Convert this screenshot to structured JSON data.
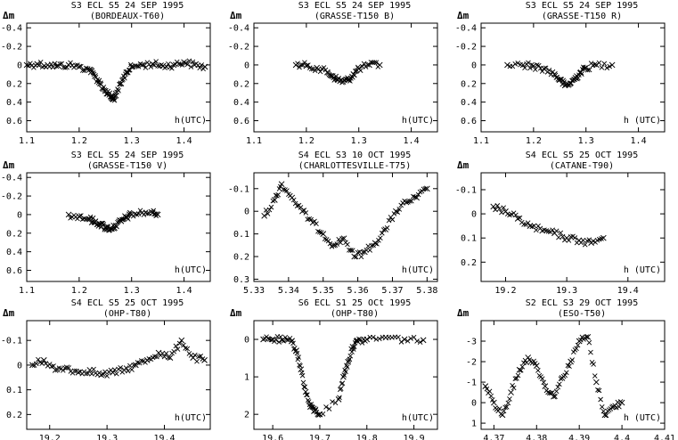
{
  "chart_data": [
    {
      "type": "scatter",
      "title": "S3 ECL S5 24 SEP 1995",
      "subtitle": "(BORDEAUX-T60)",
      "ylabel": "Δm",
      "xlabel": "h(UTC)",
      "xlim": [
        1.1,
        1.45
      ],
      "ylim": [
        -0.45,
        0.72
      ],
      "y_inverted": true,
      "xticks": [
        1.1,
        1.2,
        1.3,
        1.4
      ],
      "xtick_labels": [
        "1.1",
        "1.2",
        "1.3",
        "1.4"
      ],
      "yticks": [
        -0.4,
        -0.2,
        0,
        0.2,
        0.4,
        0.6
      ],
      "ytick_labels": [
        "-0.4",
        "-0.2",
        "0",
        "0.2",
        "0.4",
        "0.6"
      ],
      "marker": "x",
      "series": [
        {
          "x": [
            1.1,
            1.12,
            1.14,
            1.16,
            1.18,
            1.2,
            1.22,
            1.23,
            1.24,
            1.25,
            1.26,
            1.265,
            1.27,
            1.28,
            1.29,
            1.3,
            1.32,
            1.34,
            1.36,
            1.38,
            1.4,
            1.42,
            1.44
          ],
          "y": [
            0.0,
            -0.01,
            0.0,
            0.01,
            0.0,
            0.02,
            0.05,
            0.12,
            0.2,
            0.28,
            0.34,
            0.37,
            0.33,
            0.2,
            0.08,
            0.02,
            0.0,
            -0.01,
            0.01,
            0.0,
            -0.03,
            0.0,
            0.02
          ]
        }
      ]
    },
    {
      "type": "scatter",
      "title": "S3 ECL S5 24 SEP 1995",
      "subtitle": "(GRASSE-T150 B)",
      "ylabel": "Δm",
      "xlabel": "h(UTC)",
      "xlim": [
        1.1,
        1.45
      ],
      "ylim": [
        -0.45,
        0.72
      ],
      "y_inverted": true,
      "xticks": [
        1.1,
        1.2,
        1.3,
        1.4
      ],
      "xtick_labels": [
        "1.1",
        "1.2",
        "1.3",
        "1.4"
      ],
      "yticks": [
        -0.4,
        -0.2,
        0,
        0.2,
        0.4,
        0.6
      ],
      "ytick_labels": [
        "-0.4",
        "-0.2",
        "0",
        "0.2",
        "0.4",
        "0.6"
      ],
      "marker": "x",
      "series": [
        {
          "x": [
            1.18,
            1.2,
            1.22,
            1.24,
            1.25,
            1.26,
            1.27,
            1.28,
            1.29,
            1.3,
            1.32,
            1.34
          ],
          "y": [
            0.0,
            0.01,
            0.03,
            0.08,
            0.12,
            0.16,
            0.18,
            0.16,
            0.1,
            0.04,
            0.0,
            0.0
          ]
        }
      ]
    },
    {
      "type": "scatter",
      "title": "S3 ECL S5 24 SEP 1995",
      "subtitle": "(GRASSE-T150 R)",
      "ylabel": "Δm",
      "xlabel": "h (UTC)",
      "xlim": [
        1.1,
        1.45
      ],
      "ylim": [
        -0.45,
        0.72
      ],
      "y_inverted": true,
      "xticks": [
        1.1,
        1.2,
        1.3,
        1.4
      ],
      "xtick_labels": [
        "1.1",
        "1.2",
        "1.3",
        "1.4"
      ],
      "yticks": [
        -0.4,
        -0.2,
        0,
        0.2,
        0.4,
        0.6
      ],
      "ytick_labels": [
        "-0.4",
        "-0.2",
        "0",
        "0.2",
        "0.4",
        "0.6"
      ],
      "marker": "x",
      "series": [
        {
          "x": [
            1.15,
            1.18,
            1.2,
            1.22,
            1.24,
            1.25,
            1.26,
            1.27,
            1.28,
            1.29,
            1.3,
            1.32,
            1.35
          ],
          "y": [
            0.0,
            0.0,
            0.01,
            0.04,
            0.1,
            0.16,
            0.22,
            0.2,
            0.14,
            0.08,
            0.03,
            0.0,
            0.0
          ]
        }
      ]
    },
    {
      "type": "scatter",
      "title": "S3 ECL S5 24 SEP 1995",
      "subtitle": "(GRASSE-T150 V)",
      "ylabel": "Δm",
      "xlabel": "h(UTC)",
      "xlim": [
        1.1,
        1.45
      ],
      "ylim": [
        -0.45,
        0.72
      ],
      "y_inverted": true,
      "xticks": [
        1.1,
        1.2,
        1.3,
        1.4
      ],
      "xtick_labels": [
        "1.1",
        "1.2",
        "1.3",
        "1.4"
      ],
      "yticks": [
        -0.4,
        -0.2,
        0,
        0.2,
        0.4,
        0.6
      ],
      "ytick_labels": [
        "-0.4",
        "-0.2",
        "0",
        "0.2",
        "0.4",
        "0.6"
      ],
      "marker": "x",
      "series": [
        {
          "x": [
            1.18,
            1.2,
            1.22,
            1.23,
            1.24,
            1.25,
            1.26,
            1.27,
            1.28,
            1.29,
            1.3,
            1.32,
            1.34,
            1.35
          ],
          "y": [
            0.0,
            0.02,
            0.05,
            0.08,
            0.1,
            0.14,
            0.15,
            0.12,
            0.07,
            0.03,
            0.0,
            -0.02,
            -0.02,
            0.0
          ]
        }
      ]
    },
    {
      "type": "scatter",
      "title": "S4 ECL S3 10 OCT 1995",
      "subtitle": "(CHARLOTTESVILLE-T75)",
      "ylabel": "",
      "xlabel": "h(UTC)",
      "xlim": [
        5.33,
        5.383
      ],
      "ylim": [
        -0.17,
        0.31
      ],
      "y_inverted": true,
      "xticks": [
        5.33,
        5.34,
        5.35,
        5.36,
        5.37,
        5.38
      ],
      "xtick_labels": [
        "5.33",
        "5.34",
        "5.35",
        "5.36",
        "5.37",
        "5.38"
      ],
      "yticks": [
        -0.1,
        0,
        0.1,
        0.2,
        0.3
      ],
      "ytick_labels": [
        "-0.1",
        "0",
        "0.1",
        "0.2",
        "0.3"
      ],
      "marker": "x",
      "series": [
        {
          "x": [
            5.333,
            5.336,
            5.338,
            5.341,
            5.344,
            5.347,
            5.35,
            5.353,
            5.356,
            5.359,
            5.362,
            5.365,
            5.368,
            5.371,
            5.374,
            5.377,
            5.38
          ],
          "y": [
            0.02,
            -0.05,
            -0.12,
            -0.06,
            0.0,
            0.05,
            0.1,
            0.15,
            0.12,
            0.2,
            0.18,
            0.14,
            0.08,
            0.0,
            -0.04,
            -0.06,
            -0.1
          ]
        }
      ]
    },
    {
      "type": "scatter",
      "title": "S4 ECL S5 25 OCT 1995",
      "subtitle": "(CATANE-T90)",
      "ylabel": "Δm",
      "xlabel": "h (UTC)",
      "xlim": [
        19.16,
        19.46
      ],
      "ylim": [
        -0.17,
        0.28
      ],
      "y_inverted": true,
      "xticks": [
        19.2,
        19.3,
        19.4
      ],
      "xtick_labels": [
        "19.2",
        "19.3",
        "19.4"
      ],
      "yticks": [
        -0.1,
        0,
        0.1,
        0.2
      ],
      "ytick_labels": [
        "-0.1",
        "0",
        "0.1",
        "0.2"
      ],
      "marker": "x",
      "series": [
        {
          "x": [
            19.18,
            19.2,
            19.22,
            19.24,
            19.26,
            19.28,
            19.3,
            19.32,
            19.34,
            19.36
          ],
          "y": [
            -0.03,
            -0.01,
            0.02,
            0.05,
            0.07,
            0.08,
            0.1,
            0.11,
            0.12,
            0.1
          ]
        }
      ]
    },
    {
      "type": "scatter",
      "title": "S4 ECL S5 25 OCT 1995",
      "subtitle": "(OHP-T80)",
      "ylabel": "Δm",
      "xlabel": "h(UTC)",
      "xlim": [
        19.16,
        19.48
      ],
      "ylim": [
        -0.18,
        0.26
      ],
      "y_inverted": true,
      "xticks": [
        19.2,
        19.3,
        19.4
      ],
      "xtick_labels": [
        "19.2",
        "19.3",
        "19.4"
      ],
      "yticks": [
        -0.1,
        0,
        0.1,
        0.2
      ],
      "ytick_labels": [
        "-0.1",
        "0",
        "0.1",
        "0.2"
      ],
      "marker": "x",
      "series": [
        {
          "x": [
            19.17,
            19.19,
            19.21,
            19.23,
            19.25,
            19.27,
            19.29,
            19.31,
            19.33,
            19.35,
            19.37,
            19.39,
            19.41,
            19.43,
            19.45,
            19.47
          ],
          "y": [
            0.0,
            -0.02,
            0.02,
            0.01,
            0.03,
            0.02,
            0.04,
            0.03,
            0.02,
            0.0,
            -0.02,
            -0.05,
            -0.03,
            -0.1,
            -0.03,
            -0.02
          ]
        }
      ]
    },
    {
      "type": "scatter",
      "title": "S6 ECL S1 25 OCt 1995",
      "subtitle": "(OHP-T80)",
      "ylabel": "Δm",
      "xlabel": "h(UTC)",
      "xlim": [
        19.56,
        19.95
      ],
      "ylim": [
        -0.5,
        2.4
      ],
      "y_inverted": true,
      "xticks": [
        19.6,
        19.7,
        19.8,
        19.9
      ],
      "xtick_labels": [
        "19.6",
        "19.7",
        "19.8",
        "19.9"
      ],
      "yticks": [
        0,
        1,
        2
      ],
      "ytick_labels": [
        "0",
        "1",
        "2"
      ],
      "marker": "x",
      "series": [
        {
          "x": [
            19.58,
            19.6,
            19.62,
            19.64,
            19.65,
            19.66,
            19.67,
            19.68,
            19.69,
            19.7,
            19.74,
            19.75,
            19.76,
            19.77,
            19.78,
            19.8,
            19.84,
            19.88,
            19.92
          ],
          "y": [
            0.0,
            0.0,
            0.02,
            0.05,
            0.3,
            0.8,
            1.4,
            1.8,
            1.9,
            2.0,
            1.6,
            1.0,
            0.6,
            0.2,
            0.05,
            0.0,
            -0.05,
            0.0,
            0.02
          ]
        }
      ]
    },
    {
      "type": "scatter",
      "title": "S2 ECL S3 29 OCT 1995",
      "subtitle": "(ESO-T50)",
      "ylabel": "Δm",
      "xlabel": "h (UTC)",
      "xlim": [
        4.367,
        4.41
      ],
      "ylim": [
        -4.0,
        1.3
      ],
      "y_inverted": true,
      "xticks": [
        4.37,
        4.38,
        4.39,
        4.4,
        4.41
      ],
      "xtick_labels": [
        "4.37",
        "4.38",
        "4.39",
        "4.4",
        "4.41"
      ],
      "yticks": [
        -3,
        -2,
        -1,
        0,
        1
      ],
      "ytick_labels": [
        "-3",
        "-2",
        "-1",
        "0",
        "1"
      ],
      "marker": "x",
      "series": [
        {
          "x": [
            4.368,
            4.37,
            4.372,
            4.374,
            4.376,
            4.378,
            4.38,
            4.382,
            4.384,
            4.386,
            4.388,
            4.39,
            4.392,
            4.394,
            4.396,
            4.398,
            4.4
          ],
          "y": [
            -0.8,
            0.0,
            0.6,
            -0.5,
            -1.6,
            -2.2,
            -1.8,
            -0.8,
            -0.3,
            -1.2,
            -2.0,
            -3.0,
            -3.2,
            -1.0,
            0.6,
            0.2,
            0.0
          ]
        }
      ]
    }
  ]
}
